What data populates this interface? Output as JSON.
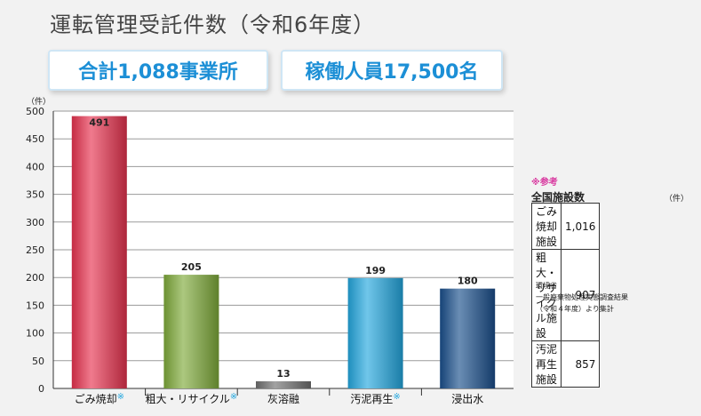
{
  "title": "運転管理受託件数（令和6年度）",
  "badges": {
    "offices": "合計1,088事業所",
    "staff": "稼働人員17,500名"
  },
  "chart_data": {
    "type": "bar",
    "unit_label": "（件）",
    "categories": [
      "ごみ焼却",
      "粗大・リサイクル",
      "灰溶融",
      "汚泥再生",
      "浸出水"
    ],
    "category_marks": [
      "※",
      "※",
      "",
      "※",
      ""
    ],
    "values": [
      491,
      205,
      13,
      199,
      180
    ],
    "data_labels": [
      "491",
      "205",
      "13",
      "199",
      "180"
    ],
    "ylim": [
      0,
      500
    ],
    "yticks": [
      0,
      50,
      100,
      150,
      200,
      250,
      300,
      350,
      400,
      450,
      500
    ],
    "grid": true,
    "bar_colors": [
      "#e8324f",
      "#7fab3a",
      "#707070",
      "#23a7de",
      "#1a4f8c"
    ]
  },
  "reference": {
    "note": "※参考",
    "title": "全国施設数",
    "unit": "（件）",
    "rows": [
      {
        "name": "ごみ焼却施設",
        "value": "1,016"
      },
      {
        "name": "粗大・リサイクル施設",
        "value": "907"
      },
      {
        "name": "汚泥再生施設",
        "value": "857"
      }
    ],
    "source": [
      "環境省",
      "一般廃棄物処理実態調査結果",
      "（令和４年度）より集計"
    ]
  }
}
